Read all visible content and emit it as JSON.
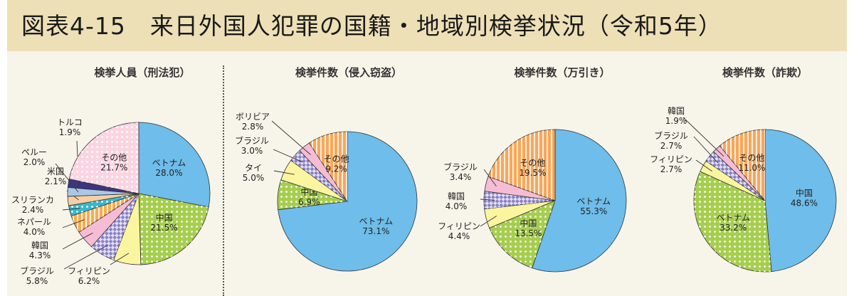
{
  "header": {
    "title": "図表4-15　来日外国人犯罪の国籍・地域別検挙状況（令和5年）"
  },
  "colors": {
    "vietnam": "#6ebdea",
    "china": "#a6ce4e",
    "philippines": "#fbf5a0",
    "brazil": "#f6bcd4",
    "korea": "#8a80c6",
    "nepal": "#f4ad52",
    "srilanka": "#38b6cf",
    "usa": "#f7cfa2",
    "peru": "#a9c8e8",
    "turkey": "#3d3580",
    "thailand": "#fbf5a0",
    "bolivia": "#b296c7",
    "other": "#f7a75a",
    "other_pink": "#fbd4e2"
  },
  "chart_data": [
    {
      "type": "pie",
      "title": "検挙人員（刑法犯）",
      "slices": [
        {
          "label": "ベトナム",
          "value": 28.0,
          "display": "28.0%",
          "color": "#6ebdea",
          "pattern": "none"
        },
        {
          "label": "中国",
          "value": 21.5,
          "display": "21.5%",
          "color": "#a6ce4e",
          "pattern": "dots"
        },
        {
          "label": "フィリピン",
          "value": 6.2,
          "display": "6.2%",
          "color": "#fbf5a0",
          "pattern": "none"
        },
        {
          "label": "ブラジル",
          "value": 5.8,
          "display": "5.8%",
          "color": "#8a80c6",
          "pattern": "check"
        },
        {
          "label": "韓国",
          "value": 4.3,
          "display": "4.3%",
          "color": "#f6bcd4",
          "pattern": "none"
        },
        {
          "label": "ネパール",
          "value": 4.0,
          "display": "4.0%",
          "color": "#f4ad52",
          "pattern": "stripes"
        },
        {
          "label": "スリランカ",
          "value": 2.4,
          "display": "2.4%",
          "color": "#38b6cf",
          "pattern": "dots"
        },
        {
          "label": "米国",
          "value": 2.1,
          "display": "2.1%",
          "color": "#f7cfa2",
          "pattern": "none"
        },
        {
          "label": "ペルー",
          "value": 2.0,
          "display": "2.0%",
          "color": "#a9c8e8",
          "pattern": "none"
        },
        {
          "label": "トルコ",
          "value": 1.9,
          "display": "1.9%",
          "color": "#3d3580",
          "pattern": "none"
        },
        {
          "label": "その他",
          "value": 21.7,
          "display": "21.7%",
          "color": "#fbd4e2",
          "pattern": "dots"
        }
      ]
    },
    {
      "type": "pie",
      "title": "検挙件数（侵入窃盗）",
      "slices": [
        {
          "label": "ベトナム",
          "value": 73.1,
          "display": "73.1%",
          "color": "#6ebdea",
          "pattern": "none"
        },
        {
          "label": "中国",
          "value": 6.9,
          "display": "6.9%",
          "color": "#a6ce4e",
          "pattern": "dots"
        },
        {
          "label": "タイ",
          "value": 5.0,
          "display": "5.0%",
          "color": "#fbf5a0",
          "pattern": "none"
        },
        {
          "label": "ブラジル",
          "value": 3.0,
          "display": "3.0%",
          "color": "#8a80c6",
          "pattern": "check"
        },
        {
          "label": "ボリビア",
          "value": 2.8,
          "display": "2.8%",
          "color": "#f6bcd4",
          "pattern": "none"
        },
        {
          "label": "その他",
          "value": 9.2,
          "display": "9.2%",
          "color": "#f7a75a",
          "pattern": "stripes"
        }
      ]
    },
    {
      "type": "pie",
      "title": "検挙件数（万引き）",
      "slices": [
        {
          "label": "ベトナム",
          "value": 55.3,
          "display": "55.3%",
          "color": "#6ebdea",
          "pattern": "none"
        },
        {
          "label": "中国",
          "value": 13.5,
          "display": "13.5%",
          "color": "#a6ce4e",
          "pattern": "dots"
        },
        {
          "label": "フィリピン",
          "value": 4.4,
          "display": "4.4%",
          "color": "#fbf5a0",
          "pattern": "none"
        },
        {
          "label": "韓国",
          "value": 4.0,
          "display": "4.0%",
          "color": "#8a80c6",
          "pattern": "check"
        },
        {
          "label": "ブラジル",
          "value": 3.4,
          "display": "3.4%",
          "color": "#f6bcd4",
          "pattern": "none"
        },
        {
          "label": "その他",
          "value": 19.5,
          "display": "19.5%",
          "color": "#f7a75a",
          "pattern": "stripes"
        }
      ]
    },
    {
      "type": "pie",
      "title": "検挙件数（詐欺）",
      "slices": [
        {
          "label": "中国",
          "value": 48.6,
          "display": "48.6%",
          "color": "#6ebdea",
          "pattern": "none"
        },
        {
          "label": "ベトナム",
          "value": 33.2,
          "display": "33.2%",
          "color": "#a6ce4e",
          "pattern": "dots"
        },
        {
          "label": "フィリピン",
          "value": 2.7,
          "display": "2.7%",
          "color": "#fbf5a0",
          "pattern": "none"
        },
        {
          "label": "ブラジル",
          "value": 2.7,
          "display": "2.7%",
          "color": "#8a80c6",
          "pattern": "check"
        },
        {
          "label": "韓国",
          "value": 1.9,
          "display": "1.9%",
          "color": "#f6bcd4",
          "pattern": "none"
        },
        {
          "label": "その他",
          "value": 11.0,
          "display": "11.0%",
          "color": "#f7a75a",
          "pattern": "stripes"
        }
      ]
    }
  ]
}
